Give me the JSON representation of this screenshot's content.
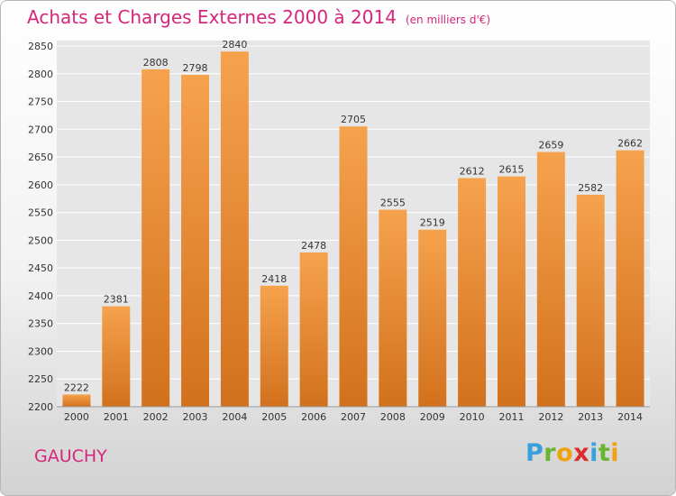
{
  "header": {
    "title": "Achats et Charges Externes 2000 à 2014",
    "unit": "(en milliers d'€)"
  },
  "footer": {
    "city": "GAUCHY",
    "logo_text": "Proxiti"
  },
  "colors": {
    "title": "#d6267a",
    "bar_top": "#f6a24d",
    "bar_bottom": "#d2711d",
    "grid": "#ffffff",
    "plot_bg": "#e6e6e6"
  },
  "chart_data": {
    "type": "bar",
    "title": "Achats et Charges Externes 2000 à 2014",
    "categories": [
      "2000",
      "2001",
      "2002",
      "2003",
      "2004",
      "2005",
      "2006",
      "2007",
      "2008",
      "2009",
      "2010",
      "2011",
      "2012",
      "2013",
      "2014"
    ],
    "values": [
      2222,
      2381,
      2808,
      2798,
      2840,
      2418,
      2478,
      2705,
      2555,
      2519,
      2612,
      2615,
      2659,
      2582,
      2662
    ],
    "ylim": [
      2200,
      2850
    ],
    "yticks": [
      2200,
      2250,
      2300,
      2350,
      2400,
      2450,
      2500,
      2550,
      2600,
      2650,
      2700,
      2750,
      2800,
      2850
    ],
    "xlabel": "",
    "ylabel": "",
    "grid": true,
    "data_labels": true
  }
}
